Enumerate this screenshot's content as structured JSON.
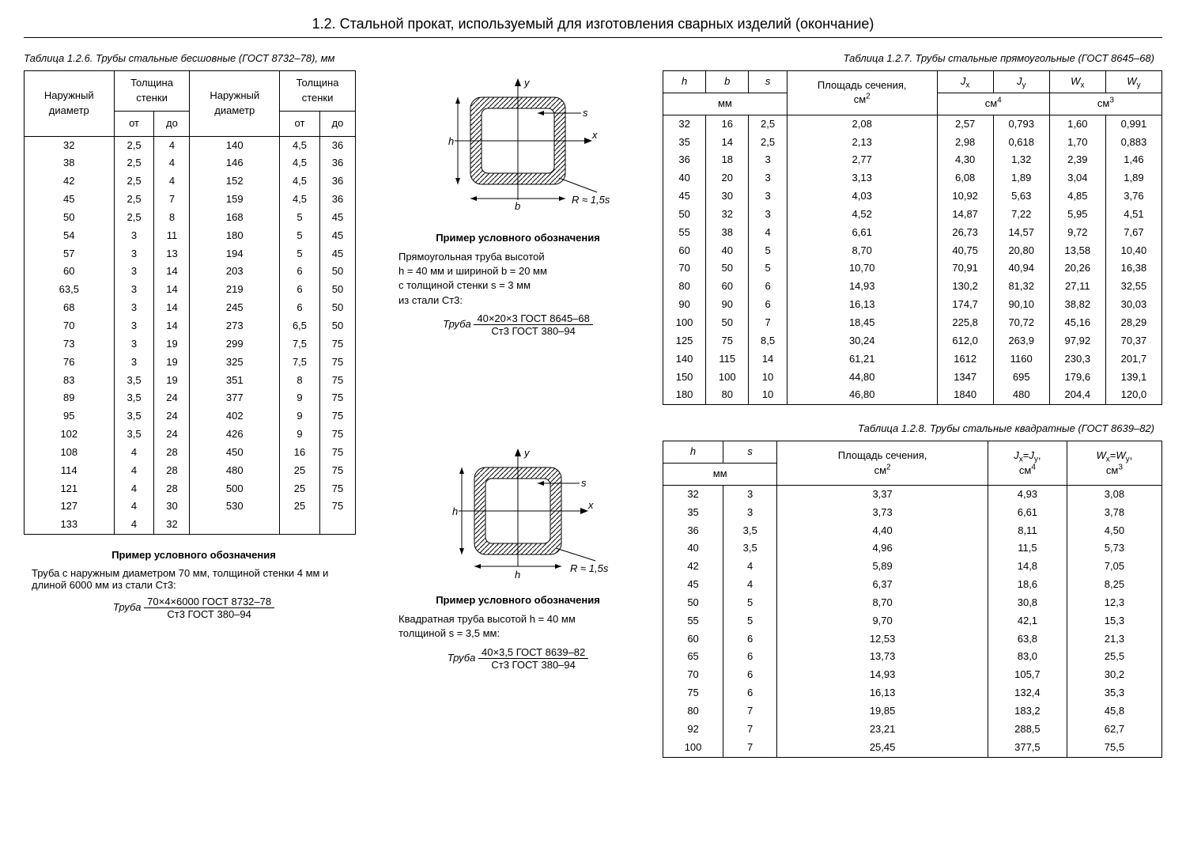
{
  "page_title": "1.2.  Стальной прокат, используемый для изготовления сварных изделий (окончание)",
  "t126": {
    "caption": "Таблица 1.2.6.  Трубы стальные бесшовные (ГОСТ 8732–78), мм",
    "h_outer": "Наружный диаметр",
    "h_wall": "Толщина стенки",
    "h_from": "от",
    "h_to": "до",
    "rows": [
      [
        "32",
        "2,5",
        "4",
        "140",
        "4,5",
        "36"
      ],
      [
        "38",
        "2,5",
        "4",
        "146",
        "4,5",
        "36"
      ],
      [
        "42",
        "2,5",
        "4",
        "152",
        "4,5",
        "36"
      ],
      [
        "45",
        "2,5",
        "7",
        "159",
        "4,5",
        "36"
      ],
      [
        "50",
        "2,5",
        "8",
        "168",
        "5",
        "45"
      ],
      [
        "54",
        "3",
        "11",
        "180",
        "5",
        "45"
      ],
      [
        "57",
        "3",
        "13",
        "194",
        "5",
        "45"
      ],
      [
        "60",
        "3",
        "14",
        "203",
        "6",
        "50"
      ],
      [
        "63,5",
        "3",
        "14",
        "219",
        "6",
        "50"
      ],
      [
        "68",
        "3",
        "14",
        "245",
        "6",
        "50"
      ],
      [
        "70",
        "3",
        "14",
        "273",
        "6,5",
        "50"
      ],
      [
        "73",
        "3",
        "19",
        "299",
        "7,5",
        "75"
      ],
      [
        "76",
        "3",
        "19",
        "325",
        "7,5",
        "75"
      ],
      [
        "83",
        "3,5",
        "19",
        "351",
        "8",
        "75"
      ],
      [
        "89",
        "3,5",
        "24",
        "377",
        "9",
        "75"
      ],
      [
        "95",
        "3,5",
        "24",
        "402",
        "9",
        "75"
      ],
      [
        "102",
        "3,5",
        "24",
        "426",
        "9",
        "75"
      ],
      [
        "108",
        "4",
        "28",
        "450",
        "16",
        "75"
      ],
      [
        "114",
        "4",
        "28",
        "480",
        "25",
        "75"
      ],
      [
        "121",
        "4",
        "28",
        "500",
        "25",
        "75"
      ],
      [
        "127",
        "4",
        "30",
        "530",
        "25",
        "75"
      ],
      [
        "133",
        "4",
        "32",
        "",
        "",
        ""
      ]
    ],
    "example_head": "Пример условного обозначения",
    "example_text": "Труба с наружным диаметром 70 мм, толщиной стенки 4 мм и длиной 6000 мм из стали Ст3:",
    "frac_label": "Труба",
    "frac_top": "70×4×6000 ГОСТ 8732–78",
    "frac_bot": "Ст3 ГОСТ 380–94"
  },
  "t127": {
    "caption": "Таблица 1.2.7.  Трубы стальные прямоугольные (ГОСТ 8645–68)",
    "h_h": "h",
    "h_b": "b",
    "h_s": "s",
    "h_area": "Площадь сечения,",
    "h_jx": "J",
    "h_jy": "J",
    "h_wx": "W",
    "h_wy": "W",
    "u_mm": "мм",
    "u_cm2": "см",
    "u_cm4": "см",
    "u_cm3": "см",
    "rows": [
      [
        "32",
        "16",
        "2,5",
        "2,08",
        "2,57",
        "0,793",
        "1,60",
        "0,991"
      ],
      [
        "35",
        "14",
        "2,5",
        "2,13",
        "2,98",
        "0,618",
        "1,70",
        "0,883"
      ],
      [
        "36",
        "18",
        "3",
        "2,77",
        "4,30",
        "1,32",
        "2,39",
        "1,46"
      ],
      [
        "40",
        "20",
        "3",
        "3,13",
        "6,08",
        "1,89",
        "3,04",
        "1,89"
      ],
      [
        "45",
        "30",
        "3",
        "4,03",
        "10,92",
        "5,63",
        "4,85",
        "3,76"
      ],
      [
        "50",
        "32",
        "3",
        "4,52",
        "14,87",
        "7,22",
        "5,95",
        "4,51"
      ],
      [
        "55",
        "38",
        "4",
        "6,61",
        "26,73",
        "14,57",
        "9,72",
        "7,67"
      ],
      [
        "60",
        "40",
        "5",
        "8,70",
        "40,75",
        "20,80",
        "13,58",
        "10,40"
      ],
      [
        "70",
        "50",
        "5",
        "10,70",
        "70,91",
        "40,94",
        "20,26",
        "16,38"
      ],
      [
        "80",
        "60",
        "6",
        "14,93",
        "130,2",
        "81,32",
        "27,11",
        "32,55"
      ],
      [
        "90",
        "90",
        "6",
        "16,13",
        "174,7",
        "90,10",
        "38,82",
        "30,03"
      ],
      [
        "100",
        "50",
        "7",
        "18,45",
        "225,8",
        "70,72",
        "45,16",
        "28,29"
      ],
      [
        "125",
        "75",
        "8,5",
        "30,24",
        "612,0",
        "263,9",
        "97,92",
        "70,37"
      ],
      [
        "140",
        "115",
        "14",
        "61,21",
        "1612",
        "1160",
        "230,3",
        "201,7"
      ],
      [
        "150",
        "100",
        "10",
        "44,80",
        "1347",
        "695",
        "179,6",
        "139,1"
      ],
      [
        "180",
        "80",
        "10",
        "46,80",
        "1840",
        "480",
        "204,4",
        "120,0"
      ]
    ],
    "example_head": "Пример условного обозначения",
    "example_lines": [
      "Прямоугольная труба высотой",
      "h = 40 мм и шириной b = 20 мм",
      "с толщиной стенки s = 3 мм",
      "из стали Ст3:"
    ],
    "frac_label": "Труба",
    "frac_top": "40×20×3 ГОСТ 8645–68",
    "frac_bot": "Ст3 ГОСТ 380–94",
    "diag_R": "R ≈ 1,5s",
    "diag_h": "h",
    "diag_b": "b",
    "diag_s": "s",
    "diag_x": "x",
    "diag_y": "y"
  },
  "t128": {
    "caption": "Таблица 1.2.8.  Трубы стальные квадратные (ГОСТ 8639–82)",
    "h_h": "h",
    "h_s": "s",
    "h_area": "Площадь сечения,",
    "h_j": "J",
    "h_w": "W",
    "u_mm": "мм",
    "u_cm2": "см",
    "u_cm4": "см",
    "u_cm3": "см",
    "rows": [
      [
        "32",
        "3",
        "3,37",
        "4,93",
        "3,08"
      ],
      [
        "35",
        "3",
        "3,73",
        "6,61",
        "3,78"
      ],
      [
        "36",
        "3,5",
        "4,40",
        "8,11",
        "4,50"
      ],
      [
        "40",
        "3,5",
        "4,96",
        "11,5",
        "5,73"
      ],
      [
        "42",
        "4",
        "5,89",
        "14,8",
        "7,05"
      ],
      [
        "45",
        "4",
        "6,37",
        "18,6",
        "8,25"
      ],
      [
        "50",
        "5",
        "8,70",
        "30,8",
        "12,3"
      ],
      [
        "55",
        "5",
        "9,70",
        "42,1",
        "15,3"
      ],
      [
        "60",
        "6",
        "12,53",
        "63,8",
        "21,3"
      ],
      [
        "65",
        "6",
        "13,73",
        "83,0",
        "25,5"
      ],
      [
        "70",
        "6",
        "14,93",
        "105,7",
        "30,2"
      ],
      [
        "75",
        "6",
        "16,13",
        "132,4",
        "35,3"
      ],
      [
        "80",
        "7",
        "19,85",
        "183,2",
        "45,8"
      ],
      [
        "92",
        "7",
        "23,21",
        "288,5",
        "62,7"
      ],
      [
        "100",
        "7",
        "25,45",
        "377,5",
        "75,5"
      ]
    ],
    "example_head": "Пример условного обозначения",
    "example_lines": [
      "Квадратная труба высотой h = 40 мм",
      "толщиной s = 3,5 мм:"
    ],
    "frac_label": "Труба",
    "frac_top": "40×3,5 ГОСТ 8639–82",
    "frac_bot": "Ст3 ГОСТ 380–94",
    "diag_R": "R ≈ 1,5s",
    "diag_h": "h",
    "diag_s": "s",
    "diag_x": "x",
    "diag_y": "y"
  }
}
